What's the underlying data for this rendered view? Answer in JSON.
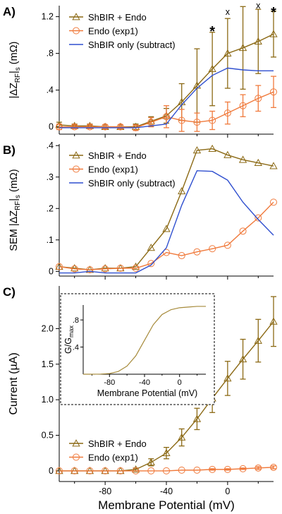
{
  "colors": {
    "shbir_endo": "#8B6914",
    "endo": "#F07A3C",
    "shbir_only": "#2F4FCF",
    "inset_curve": "#A68A3A"
  },
  "chart_data": [
    {
      "type": "line",
      "panel_label": "A)",
      "ylabel": "|ΔZ_RF|_s (mΩ)",
      "ylabel_main": "|ΔZ",
      "ylabel_sub1": "RF",
      "ylabel_mid": "|",
      "ylabel_sub2": "s",
      "ylabel_unit": " (mΩ)",
      "xlabel": "",
      "xlim": [
        -110,
        30
      ],
      "ylim": [
        -0.08,
        1.32
      ],
      "yticks": [
        0,
        0.4,
        0.8,
        1.2
      ],
      "ytick_labels": [
        "0",
        ".4",
        ".8",
        "1.2"
      ],
      "x": [
        -110,
        -100,
        -90,
        -80,
        -70,
        -60,
        -50,
        -40,
        -30,
        -20,
        -10,
        0,
        10,
        20,
        30
      ],
      "legend": [
        "ShBIR + Endo",
        "Endo (exp1)",
        "ShBIR only (subtract)"
      ],
      "series": [
        {
          "name": "ShBIR + Endo",
          "values": [
            0.02,
            0.01,
            0.01,
            0.0,
            0.0,
            0.0,
            0.06,
            0.12,
            0.27,
            0.45,
            0.63,
            0.8,
            0.86,
            0.93,
            1.01
          ],
          "err": [
            0.03,
            0.02,
            0.02,
            0.02,
            0.02,
            0.03,
            0.05,
            0.08,
            0.2,
            0.4,
            0.4,
            0.38,
            0.45,
            0.35,
            0.25
          ]
        },
        {
          "name": "Endo (exp1)",
          "values": [
            0.0,
            0.0,
            0.0,
            0.0,
            0.0,
            -0.01,
            0.05,
            0.11,
            0.07,
            0.05,
            0.07,
            0.15,
            0.23,
            0.31,
            0.38
          ],
          "err": [
            0.03,
            0.02,
            0.02,
            0.02,
            0.02,
            0.03,
            0.05,
            0.12,
            0.12,
            0.1,
            0.1,
            0.12,
            0.12,
            0.14,
            0.17
          ]
        },
        {
          "name": "ShBIR only (subtract)",
          "values": [
            -0.01,
            -0.01,
            -0.01,
            -0.01,
            -0.01,
            -0.01,
            0.01,
            0.03,
            0.24,
            0.42,
            0.56,
            0.64,
            0.62,
            0.61,
            0.61
          ]
        }
      ],
      "annotations": [
        {
          "text": "*",
          "x": -10,
          "y": 1.08
        },
        {
          "text": "x",
          "x": 0,
          "y": 1.22
        },
        {
          "text": "x",
          "x": 20,
          "y": 1.29
        },
        {
          "text": "*",
          "x": 30,
          "y": 1.29
        }
      ]
    },
    {
      "type": "line",
      "panel_label": "B)",
      "ylabel": "SEM |ΔZ_RF|_s (mΩ)",
      "ylabel_main": "SEM |ΔZ",
      "ylabel_sub1": "RF",
      "ylabel_mid": "|",
      "ylabel_sub2": "s",
      "ylabel_unit": " (mΩ)",
      "xlim": [
        -110,
        30
      ],
      "ylim": [
        -0.015,
        0.405
      ],
      "yticks": [
        0,
        0.1,
        0.2,
        0.3,
        0.4
      ],
      "ytick_labels": [
        "0",
        ".1",
        ".2",
        ".3",
        ".4"
      ],
      "x": [
        -110,
        -100,
        -90,
        -80,
        -70,
        -60,
        -50,
        -40,
        -30,
        -20,
        -10,
        0,
        10,
        20,
        30
      ],
      "legend": [
        "ShBIR + Endo",
        "Endo (exp1)",
        "ShBIR only (subtract)"
      ],
      "series": [
        {
          "name": "ShBIR + Endo",
          "values": [
            0.015,
            0.01,
            0.005,
            0.01,
            0.01,
            0.015,
            0.075,
            0.135,
            0.255,
            0.385,
            0.39,
            0.37,
            0.355,
            0.345,
            0.335
          ]
        },
        {
          "name": "Endo (exp1)",
          "values": [
            0.015,
            0.008,
            0.005,
            0.008,
            0.01,
            0.01,
            0.025,
            0.06,
            0.05,
            0.062,
            0.072,
            0.083,
            0.128,
            0.17,
            0.22
          ]
        },
        {
          "name": "ShBIR only (subtract)",
          "values": [
            -0.005,
            -0.005,
            0.0,
            -0.005,
            -0.005,
            -0.005,
            0.02,
            0.075,
            0.21,
            0.32,
            0.318,
            0.29,
            0.22,
            0.165,
            0.115
          ]
        }
      ]
    },
    {
      "type": "line",
      "panel_label": "C)",
      "ylabel": "Current (µA)",
      "xlabel": "Membrane Potential (mV)",
      "xlim": [
        -110,
        30
      ],
      "ylim": [
        -0.15,
        2.6
      ],
      "xticks": [
        -80,
        -40,
        0
      ],
      "yticks": [
        0,
        0.5,
        1.0,
        1.5,
        2.0
      ],
      "ytick_labels": [
        "0",
        "0.5",
        "1.0",
        "1.5",
        "2.0"
      ],
      "x": [
        -110,
        -100,
        -90,
        -80,
        -70,
        -60,
        -50,
        -40,
        -30,
        -20,
        -10,
        0,
        10,
        20,
        30
      ],
      "legend": [
        "ShBIR + Endo",
        "Endo (exp1)"
      ],
      "series": [
        {
          "name": "ShBIR + Endo",
          "values": [
            0.0,
            0.0,
            0.0,
            0.0,
            0.0,
            0.02,
            0.12,
            0.25,
            0.47,
            0.73,
            1.02,
            1.3,
            1.57,
            1.83,
            2.1
          ],
          "err": [
            0,
            0,
            0,
            0,
            0,
            0.02,
            0.05,
            0.08,
            0.12,
            0.15,
            0.2,
            0.24,
            0.28,
            0.3,
            0.35
          ]
        },
        {
          "name": "Endo (exp1)",
          "values": [
            0.0,
            0.0,
            0.0,
            0.0,
            0.0,
            0.0,
            0.0,
            0.0,
            0.01,
            0.01,
            0.02,
            0.02,
            0.03,
            0.04,
            0.05
          ],
          "err": [
            0,
            0,
            0,
            0,
            0,
            0,
            0,
            0,
            0,
            0,
            0.01,
            0.01,
            0.01,
            0.02,
            0.02
          ]
        }
      ],
      "inset": {
        "type": "line",
        "ylabel_main": "G/G",
        "ylabel_sub": "max",
        "xlabel": "Membrane Potential (mV)",
        "xlim": [
          -110,
          30
        ],
        "ylim": [
          0,
          1.02
        ],
        "xticks": [
          -80,
          -40,
          0
        ],
        "yticks": [
          0.4,
          0.8
        ],
        "ytick_labels": [
          ".4",
          ".8"
        ],
        "x": [
          -110,
          -100,
          -90,
          -80,
          -70,
          -60,
          -50,
          -40,
          -30,
          -20,
          -10,
          0,
          10,
          20,
          30
        ],
        "values": [
          0.0,
          0.0,
          0.002,
          0.01,
          0.04,
          0.12,
          0.27,
          0.5,
          0.73,
          0.88,
          0.95,
          0.98,
          0.99,
          1.0,
          1.0
        ]
      }
    }
  ]
}
